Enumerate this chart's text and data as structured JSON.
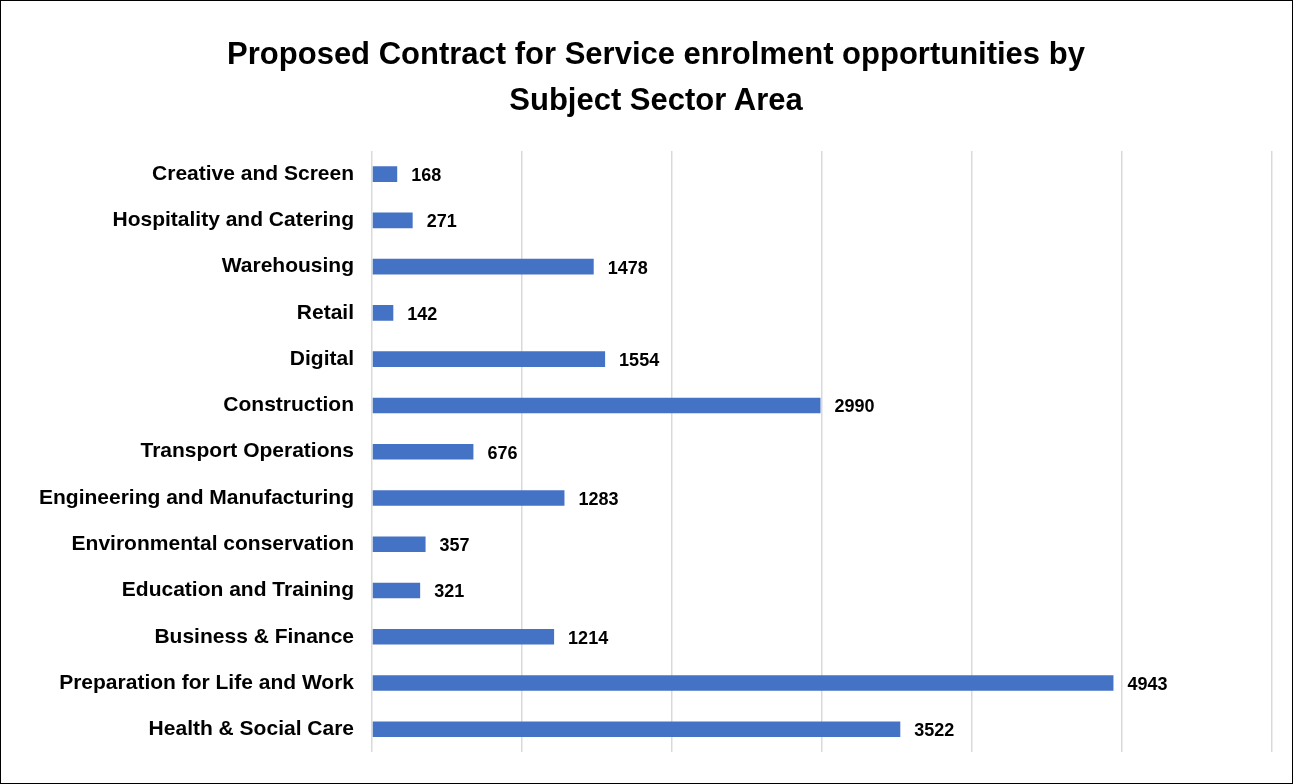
{
  "chart_data": {
    "type": "bar",
    "orientation": "horizontal",
    "title": "Proposed Contract for Service enrolment opportunities by Subject Sector Area",
    "categories": [
      "Creative and Screen",
      "Hospitality and Catering",
      "Warehousing",
      "Retail",
      "Digital",
      "Construction",
      "Transport Operations",
      "Engineering and Manufacturing",
      "Environmental conservation",
      "Education and Training",
      "Business & Finance",
      "Preparation for Life and Work",
      "Health & Social Care"
    ],
    "values": [
      168,
      271,
      1478,
      142,
      1554,
      2990,
      676,
      1283,
      357,
      321,
      1214,
      4943,
      3522
    ],
    "color": "#4472c4",
    "xlim": [
      0,
      6000
    ],
    "xticks": [
      {
        "value": 0,
        "label": null
      },
      {
        "value": 1000,
        "label": null
      },
      {
        "value": 2000,
        "label": null
      },
      {
        "value": 3000,
        "label": null
      },
      {
        "value": 4000,
        "label": null
      },
      {
        "value": 5000,
        "label": null
      },
      {
        "value": 6000,
        "label": null
      }
    ],
    "grid": "x",
    "tick_labels": "y",
    "data_labels": true,
    "legend": false
  }
}
